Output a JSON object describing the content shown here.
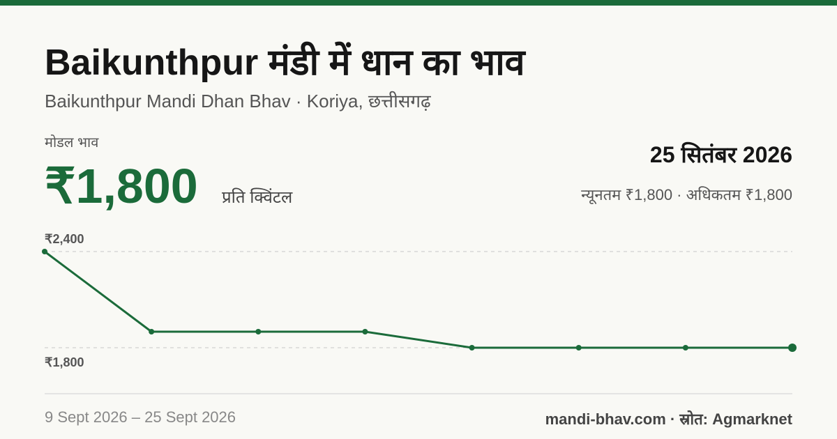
{
  "header": {
    "title": "Baikunthpur मंडी में धान का भाव",
    "subtitle": "Baikunthpur Mandi Dhan Bhav · Koriya, छत्तीसगढ़"
  },
  "price": {
    "label": "मोडल भाव",
    "value": "₹1,800",
    "unit": "प्रति क्विंटल",
    "date": "25 सितंबर 2026",
    "range": "न्यूनतम ₹1,800 · अधिकतम ₹1,800"
  },
  "footer": {
    "period": "9 Sept 2026 – 25 Sept 2026",
    "source": "mandi-bhav.com · स्रोत: Agmarknet"
  },
  "chart_data": {
    "type": "line",
    "values": [
      2400,
      1900,
      1900,
      1900,
      1800,
      1800,
      1800,
      1800
    ],
    "color": "#1b6b3a",
    "ylim": [
      1800,
      2400
    ],
    "yticks": [
      {
        "value": 2400,
        "label": "₹2,400"
      },
      {
        "value": 1800,
        "label": "₹1,800"
      }
    ],
    "grid": true
  }
}
